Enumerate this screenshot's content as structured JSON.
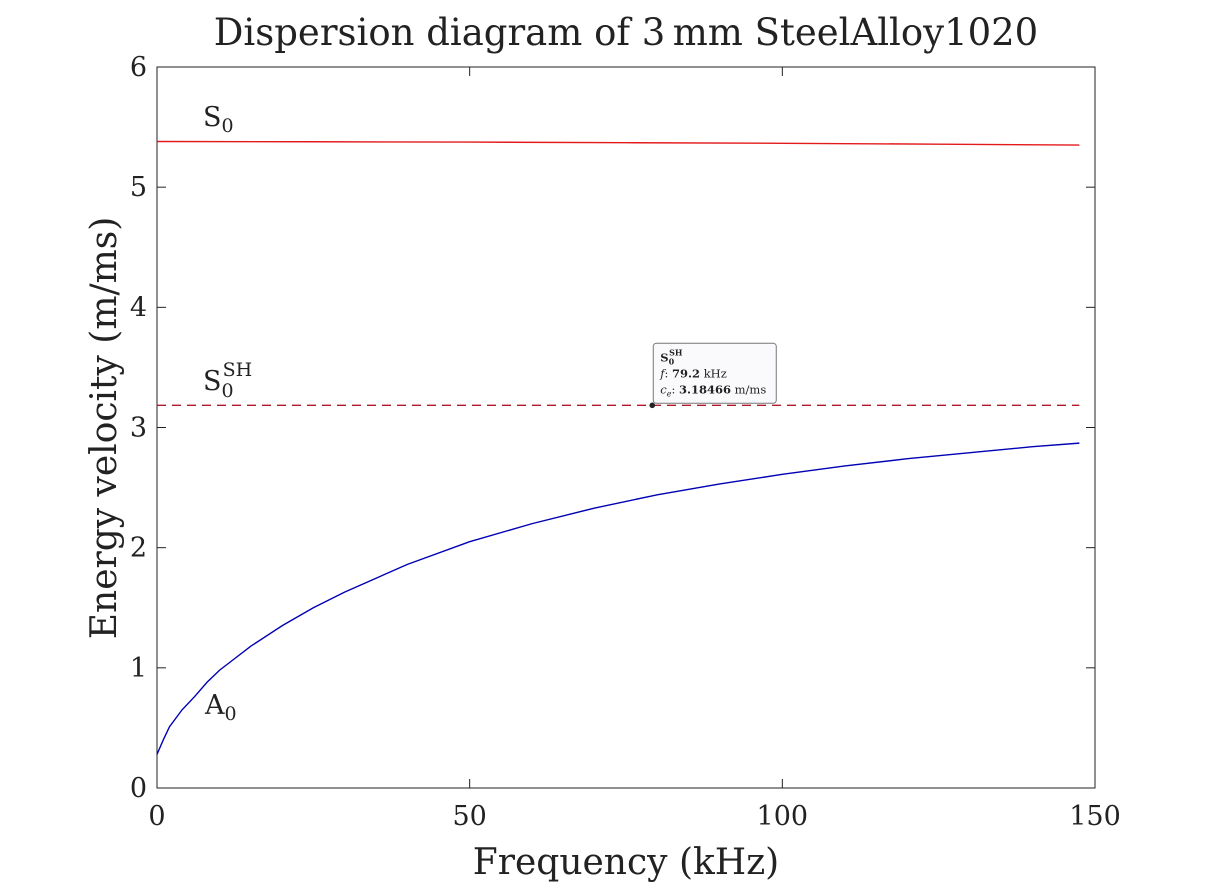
{
  "chart_data": {
    "type": "line",
    "title": "Dispersion diagram of 3 mm SteelAlloy1020",
    "xlabel": "Frequency (kHz)",
    "ylabel": "Energy velocity (m/ms)",
    "xlim": [
      0,
      150
    ],
    "ylim": [
      0,
      6
    ],
    "xticks": [
      0,
      50,
      100,
      150
    ],
    "yticks": [
      0,
      1,
      2,
      3,
      4,
      5,
      6
    ],
    "grid": false,
    "colors": {
      "S0": "#e31a1c",
      "S0SH": "#b2182b",
      "A0": "#0000b4",
      "axes": "#222222"
    },
    "series": [
      {
        "name": "S0",
        "label_main": "S",
        "label_sub": "0",
        "style": "solid",
        "x": [
          0,
          25,
          50,
          75,
          100,
          125,
          147.5
        ],
        "y": [
          5.38,
          5.378,
          5.375,
          5.37,
          5.365,
          5.358,
          5.35
        ]
      },
      {
        "name": "S0SH",
        "label_main": "S",
        "label_sub": "0",
        "label_sup": "SH",
        "style": "dashed",
        "x": [
          0,
          147.5
        ],
        "y": [
          3.18466,
          3.18466
        ]
      },
      {
        "name": "A0",
        "label_main": "A",
        "label_sub": "0",
        "style": "solid",
        "x": [
          0,
          1,
          2,
          4,
          6,
          8,
          10,
          12,
          15,
          20,
          25,
          30,
          40,
          50,
          60,
          70,
          80,
          90,
          100,
          110,
          120,
          130,
          140,
          147.5
        ],
        "y": [
          0.28,
          0.4,
          0.51,
          0.65,
          0.76,
          0.88,
          0.98,
          1.06,
          1.18,
          1.35,
          1.5,
          1.63,
          1.86,
          2.05,
          2.2,
          2.33,
          2.44,
          2.53,
          2.61,
          2.68,
          2.74,
          2.79,
          2.84,
          2.87
        ]
      }
    ],
    "datatip": {
      "series_main": "S",
      "series_sub": "0",
      "series_sup": "SH",
      "x": 79.2,
      "y": 3.18466,
      "f_symbol": "f",
      "f_value": "79.2",
      "f_unit": "kHz",
      "ce_symbol": "c",
      "ce_sub": "e",
      "ce_value": "3.18466",
      "ce_unit": "m/ms"
    }
  }
}
